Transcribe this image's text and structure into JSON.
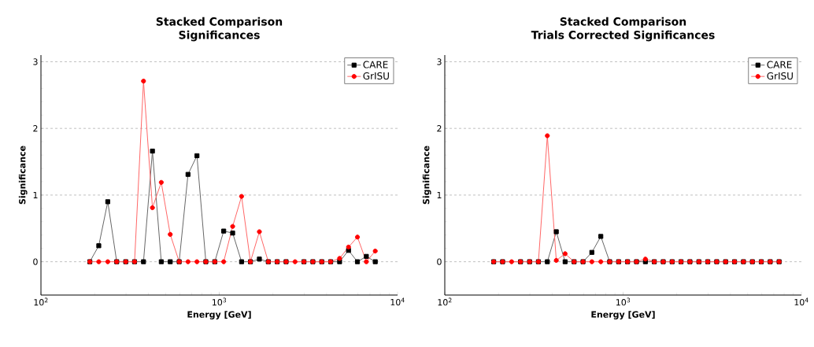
{
  "chart_data": [
    {
      "type": "line",
      "title": "Stacked Comparison",
      "subtitle": "Significances",
      "xlabel": "Energy [GeV]",
      "ylabel": "Significance",
      "x": [
        188,
        211,
        237,
        266,
        299,
        335,
        376,
        422,
        473,
        531,
        596,
        668,
        750,
        841,
        944,
        1059,
        1189,
        1334,
        1496,
        1679,
        1884,
        2113,
        2371,
        2661,
        2985,
        3350,
        3758,
        4217,
        4732,
        5309,
        5957,
        6683,
        7499
      ],
      "series": [
        {
          "name": "CARE",
          "color": "#000000",
          "marker": "square",
          "values": [
            0,
            0.24,
            0.9,
            0,
            0,
            0,
            0,
            1.66,
            0,
            0,
            0,
            1.31,
            1.59,
            0,
            0,
            0.46,
            0.43,
            0,
            0,
            0.04,
            0,
            0,
            0,
            null,
            0,
            0,
            0,
            0,
            0,
            0.17,
            0,
            0.08,
            0
          ]
        },
        {
          "name": "GrISU",
          "color": "#ff0000",
          "marker": "circle",
          "values": [
            0,
            0,
            0,
            0,
            0,
            0,
            2.71,
            0.81,
            1.19,
            0.41,
            0,
            0,
            0,
            0,
            0,
            0,
            0.53,
            0.98,
            0,
            0.45,
            0,
            0,
            0,
            0,
            0,
            0,
            0,
            0,
            0.05,
            0.22,
            0.37,
            0,
            0.16
          ]
        }
      ],
      "log": "x",
      "xlim": [
        100,
        10000
      ],
      "xticks": [
        {
          "value": 100,
          "label": "10$^{2}$"
        },
        {
          "value": 1000,
          "label": "10$^{3}$"
        },
        {
          "value": 10000,
          "label": "10$^{4}$"
        }
      ],
      "ylim": [
        -0.5,
        3.1
      ],
      "yticks": [
        0,
        1,
        2,
        3
      ],
      "grid": "y",
      "legend": "top right"
    },
    {
      "type": "line",
      "title": "Stacked Comparison",
      "subtitle": "Trials Corrected Significances",
      "xlabel": "Energy [GeV]",
      "ylabel": "Significance",
      "x": [
        188,
        211,
        237,
        266,
        299,
        335,
        376,
        422,
        473,
        531,
        596,
        668,
        750,
        841,
        944,
        1059,
        1189,
        1334,
        1496,
        1679,
        1884,
        2113,
        2371,
        2661,
        2985,
        3350,
        3758,
        4217,
        4732,
        5309,
        5957,
        6683,
        7499
      ],
      "series": [
        {
          "name": "CARE",
          "color": "#000000",
          "marker": "square",
          "values": [
            0,
            0,
            null,
            0,
            0,
            0,
            0,
            0.45,
            0,
            0,
            0,
            0.14,
            0.38,
            0,
            0,
            0,
            0,
            0,
            0,
            0,
            0,
            0,
            0,
            0,
            0,
            0,
            0,
            0,
            0,
            0,
            0,
            0,
            0
          ]
        },
        {
          "name": "GrISU",
          "color": "#ff0000",
          "marker": "circle",
          "values": [
            0,
            0,
            0,
            0,
            0,
            0,
            1.89,
            0.02,
            0.12,
            0,
            0,
            0,
            0,
            0,
            0,
            0,
            0,
            0.04,
            0,
            0,
            0,
            0,
            0,
            0,
            0,
            0,
            0,
            0,
            0,
            0,
            0,
            0,
            0
          ]
        }
      ],
      "log": "x",
      "xlim": [
        100,
        10000
      ],
      "xticks": [
        {
          "value": 100,
          "label": "10$^{2}$"
        },
        {
          "value": 1000,
          "label": "10$^{3}$"
        },
        {
          "value": 10000,
          "label": "10$^{4}$"
        }
      ],
      "ylim": [
        -0.5,
        3.1
      ],
      "yticks": [
        0,
        1,
        2,
        3
      ],
      "grid": "y",
      "legend": "top right"
    }
  ]
}
